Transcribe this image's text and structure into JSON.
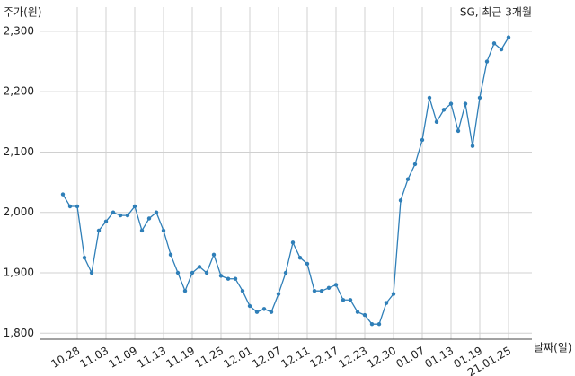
{
  "chart_data": {
    "type": "line",
    "title": "SG, 최근 3개월",
    "y_label": "주가(원)",
    "x_label": "날짜(일)",
    "categories": [
      null,
      null,
      "10.28",
      null,
      null,
      null,
      "11.03",
      null,
      null,
      null,
      "11.09",
      null,
      null,
      null,
      "11.13",
      null,
      null,
      null,
      "11.19",
      null,
      null,
      null,
      "11.25",
      null,
      null,
      null,
      "12.01",
      null,
      null,
      null,
      "12.07",
      null,
      null,
      null,
      "12.11",
      null,
      null,
      null,
      "12.17",
      null,
      null,
      null,
      "12.23",
      null,
      null,
      null,
      "12.30",
      null,
      null,
      null,
      "01.07",
      null,
      null,
      null,
      "01.13",
      null,
      null,
      null,
      "01.19",
      null,
      null,
      null,
      "21.01.25"
    ],
    "series": [
      {
        "name": "SG",
        "color": "#2f7fb8",
        "values": [
          2030,
          2010,
          2010,
          1925,
          1900,
          1970,
          1985,
          2000,
          1995,
          1995,
          2010,
          1970,
          1990,
          2000,
          1970,
          1930,
          1900,
          1870,
          1900,
          1910,
          1900,
          1930,
          1895,
          1890,
          1890,
          1870,
          1845,
          1835,
          1840,
          1835,
          1865,
          1900,
          1950,
          1925,
          1915,
          1870,
          1870,
          1875,
          1880,
          1855,
          1855,
          1835,
          1830,
          1815,
          1815,
          1850,
          1865,
          2020,
          2055,
          2080,
          2120,
          2190,
          2150,
          2170,
          2180,
          2135,
          2180,
          2110,
          2190,
          2250,
          2280,
          2270,
          2290
        ]
      }
    ],
    "ylim": [
      1790,
      2340
    ],
    "yticks": [
      {
        "value": 1800,
        "label": "1,800"
      },
      {
        "value": 1900,
        "label": "1,900"
      },
      {
        "value": 2000,
        "label": "2,000"
      },
      {
        "value": 2100,
        "label": "2,100"
      },
      {
        "value": 2200,
        "label": "2,200"
      },
      {
        "value": 2300,
        "label": "2,300"
      }
    ],
    "grid": true
  }
}
